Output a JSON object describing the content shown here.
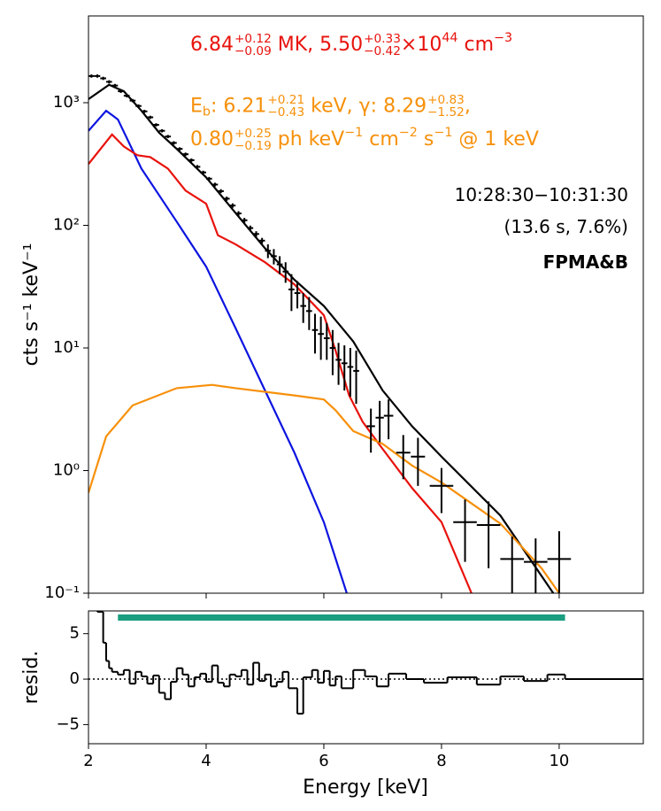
{
  "chart_data": [
    {
      "type": "line",
      "ylabel": "cts s⁻¹ keV⁻¹",
      "log_y": true,
      "xlim": [
        2,
        11.43
      ],
      "ylim": [
        0.1,
        5100
      ],
      "xticks": [
        2,
        4,
        6,
        8,
        10
      ],
      "yticks": [
        {
          "value": 0.1,
          "label": "10⁻¹"
        },
        {
          "value": 1,
          "label": "10⁰"
        },
        {
          "value": 10,
          "label": "10¹"
        },
        {
          "value": 100,
          "label": "10²"
        },
        {
          "value": 1000,
          "label": "10³"
        }
      ],
      "series": [
        {
          "color": "#000000",
          "x": [
            2.0,
            2.35,
            2.6,
            2.9,
            3.2,
            3.5,
            4.0,
            4.5,
            5.0,
            5.5,
            6.0,
            6.5,
            7.0,
            7.5,
            8.0,
            9.0,
            9.9
          ],
          "values": [
            1070,
            1400,
            1240,
            860,
            570,
            420,
            246,
            126,
            65,
            36,
            22,
            11.3,
            4.5,
            2.3,
            1.3,
            0.43,
            0.1
          ]
        },
        {
          "color": "#0c14e0",
          "x": [
            2.0,
            2.3,
            2.5,
            2.9,
            3.5,
            4.0,
            4.5,
            5.0,
            5.5,
            6.0,
            6.39
          ],
          "values": [
            590,
            860,
            730,
            290,
            107,
            46,
            14.5,
            4.5,
            1.4,
            0.38,
            0.1
          ]
        },
        {
          "color": "#e8120c",
          "x": [
            2.0,
            2.4,
            2.6,
            2.83,
            3.05,
            3.35,
            3.65,
            4.0,
            4.2,
            4.5,
            5.0,
            5.5,
            6.0,
            6.2,
            6.43,
            6.66,
            7.0,
            7.5,
            8.0,
            8.51
          ],
          "values": [
            316,
            550,
            440,
            373,
            360,
            290,
            192,
            150,
            83,
            70,
            50,
            33,
            18.5,
            9.5,
            4.1,
            2.5,
            1.5,
            0.72,
            0.38,
            0.1
          ]
        },
        {
          "color": "#f7900a",
          "x": [
            2.0,
            2.3,
            2.75,
            3.5,
            4.1,
            4.5,
            5.5,
            6.0,
            6.2,
            6.5,
            7.0,
            7.5,
            8.0,
            9.0,
            9.7,
            10.0
          ],
          "values": [
            0.66,
            1.9,
            3.4,
            4.7,
            5.0,
            4.7,
            4.1,
            3.8,
            3.1,
            2.1,
            1.65,
            1.1,
            0.8,
            0.37,
            0.16,
            0.1
          ]
        }
      ],
      "points": {
        "color": "#000000",
        "x": [
          2.05,
          2.15,
          2.25,
          2.35,
          2.45,
          2.55,
          2.65,
          2.75,
          2.85,
          2.95,
          3.05,
          3.15,
          3.25,
          3.35,
          3.45,
          3.55,
          3.65,
          3.75,
          3.85,
          3.95,
          4.05,
          4.15,
          4.25,
          4.35,
          4.45,
          4.55,
          4.65,
          4.75,
          4.85,
          4.95,
          5.05,
          5.15,
          5.25,
          5.35,
          5.45,
          5.55,
          5.65,
          5.75,
          5.85,
          5.95,
          6.05,
          6.15,
          6.25,
          6.35,
          6.45,
          6.55,
          6.8,
          6.95,
          7.1,
          7.35,
          7.6,
          8.0,
          8.4,
          8.8,
          9.2,
          9.6,
          10.0
        ],
        "values": [
          1650,
          1650,
          1580,
          1480,
          1380,
          1240,
          1140,
          1040,
          940,
          850,
          760,
          660,
          590,
          530,
          470,
          420,
          380,
          340,
          300,
          270,
          240,
          215,
          190,
          165,
          145,
          125,
          110,
          95,
          85,
          75,
          62,
          56,
          48,
          42,
          30,
          28,
          22,
          20,
          14,
          13,
          12,
          10,
          8,
          7.5,
          7,
          6.5,
          2.3,
          2.7,
          2.8,
          1.4,
          1.3,
          0.75,
          0.38,
          0.36,
          0.19,
          0.18,
          0.19
        ],
        "xerr": [
          0.05,
          0.05,
          0.05,
          0.05,
          0.05,
          0.05,
          0.05,
          0.05,
          0.05,
          0.05,
          0.05,
          0.05,
          0.05,
          0.05,
          0.05,
          0.05,
          0.05,
          0.05,
          0.05,
          0.05,
          0.05,
          0.05,
          0.05,
          0.05,
          0.05,
          0.05,
          0.05,
          0.05,
          0.05,
          0.05,
          0.05,
          0.05,
          0.05,
          0.05,
          0.05,
          0.05,
          0.05,
          0.05,
          0.05,
          0.05,
          0.05,
          0.05,
          0.05,
          0.05,
          0.05,
          0.05,
          0.07,
          0.07,
          0.08,
          0.12,
          0.12,
          0.2,
          0.2,
          0.2,
          0.2,
          0.2,
          0.2
        ],
        "yerr": [
          50,
          50,
          48,
          45,
          42,
          38,
          35,
          32,
          29,
          26,
          23,
          20,
          18,
          16,
          15,
          13,
          12,
          11,
          10,
          9,
          8,
          7.5,
          7,
          6.5,
          6,
          5.5,
          5,
          4.5,
          4.5,
          4,
          8,
          8,
          8,
          8,
          10,
          7,
          6,
          6,
          5,
          5,
          4,
          4,
          3,
          3,
          3,
          3,
          0.9,
          1,
          1,
          0.55,
          0.55,
          0.3,
          0.2,
          0.2,
          0.1,
          0.1,
          0.13
        ]
      },
      "annotations": [
        {
          "color": "#e8120c",
          "bold": false,
          "parts": [
            "6.84",
            {
              "sup": "+0.12",
              "sub": "−0.09"
            },
            " MK, 5.50",
            {
              "sup": "+0.33",
              "sub": "−0.42"
            },
            "×10",
            {
              "sup": "44"
            },
            " cm",
            {
              "sup": "−3"
            }
          ]
        },
        {
          "color": "#f7900a",
          "bold": false,
          "parts": [
            "E",
            {
              "sub": "b"
            },
            ": 6.21",
            {
              "sup": "+0.21",
              "sub": "−0.43"
            },
            " keV, γ: 8.29",
            {
              "sup": "+0.83",
              "sub": "−1.52"
            },
            ","
          ]
        },
        {
          "color": "#f7900a",
          "bold": false,
          "parts": [
            "0.80",
            {
              "sup": "+0.25",
              "sub": "−0.19"
            },
            " ph keV",
            {
              "sup": "−1"
            },
            " cm",
            {
              "sup": "−2"
            },
            " s",
            {
              "sup": "−1"
            },
            " @ 1 keV"
          ]
        },
        {
          "color": "#000000",
          "bold": false,
          "parts": [
            "10:28:30−10:31:30"
          ]
        },
        {
          "color": "#000000",
          "bold": false,
          "parts": [
            "(13.6 s, 7.6%)"
          ]
        },
        {
          "color": "#000000",
          "bold": true,
          "parts": [
            "FPMA&B"
          ]
        }
      ]
    },
    {
      "type": "step",
      "xlabel": "Energy [keV]",
      "ylabel": "resid.",
      "xlim": [
        2,
        11.43
      ],
      "ylim": [
        -7.1,
        7.5
      ],
      "xticks": [
        2,
        4,
        6,
        8,
        10
      ],
      "yticks": [
        {
          "value": -5,
          "label": "−5"
        },
        0,
        5
      ],
      "reference_line": 0,
      "fit_range": [
        2.5,
        10.1
      ],
      "fit_range_color": "#1a9e80",
      "color": "#000000",
      "x": [
        2.15,
        2.25,
        2.3,
        2.35,
        2.4,
        2.5,
        2.6,
        2.7,
        2.8,
        2.9,
        3.0,
        3.1,
        3.2,
        3.3,
        3.4,
        3.5,
        3.6,
        3.7,
        3.8,
        3.9,
        4.0,
        4.1,
        4.2,
        4.3,
        4.4,
        4.5,
        4.6,
        4.7,
        4.8,
        4.9,
        5.0,
        5.1,
        5.2,
        5.3,
        5.4,
        5.55,
        5.65,
        5.8,
        5.9,
        6.0,
        6.1,
        6.2,
        6.3,
        6.5,
        6.7,
        6.9,
        7.1,
        7.4,
        7.7,
        8.1,
        8.6,
        9.0,
        9.4,
        9.8,
        10.1
      ],
      "values": [
        7.4,
        4,
        2,
        1.2,
        0.8,
        0.5,
        1,
        -0.5,
        0.8,
        0.3,
        -0.5,
        0.4,
        -1.5,
        -2.2,
        -0.3,
        1.2,
        0.5,
        -0.8,
        0.2,
        0.6,
        -0.3,
        1.5,
        -0.4,
        -0.8,
        0.5,
        0.3,
        1,
        -0.6,
        1.8,
        -0.2,
        0.5,
        -0.8,
        -0.3,
        0.8,
        -1,
        -3.8,
        0.2,
        1,
        -0.4,
        0.9,
        -0.7,
        0.3,
        -1,
        1,
        0.3,
        -0.8,
        0.6,
        0,
        -0.4,
        0.2,
        -0.6,
        0.3,
        -0.2,
        0.5,
        0
      ]
    }
  ]
}
